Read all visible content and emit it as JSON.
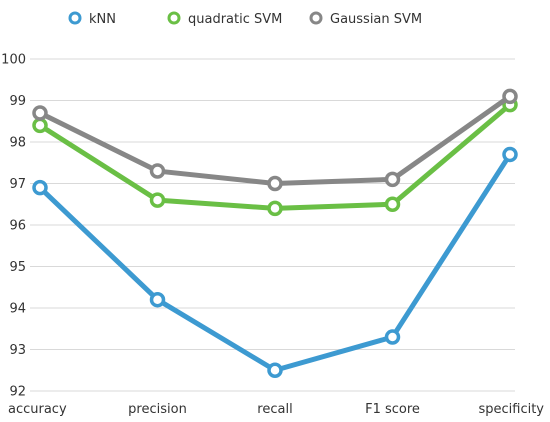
{
  "chart_data": {
    "type": "line",
    "categories": [
      "accuracy",
      "precision",
      "recall",
      "F1 score",
      "specificity"
    ],
    "ylim": [
      92,
      100
    ],
    "yticks": [
      92,
      93,
      94,
      95,
      96,
      97,
      98,
      99,
      100
    ],
    "grid": "horizontal",
    "legend_position": "top",
    "series": [
      {
        "name": "kNN",
        "color": "#3d9ad1",
        "values": [
          96.9,
          94.2,
          92.5,
          93.3,
          97.7
        ]
      },
      {
        "name": "quadratic SVM",
        "color": "#6abf45",
        "values": [
          98.4,
          96.6,
          96.4,
          96.5,
          98.9
        ]
      },
      {
        "name": "Gaussian SVM",
        "color": "#878787",
        "values": [
          98.7,
          97.3,
          97.0,
          97.1,
          99.1
        ]
      }
    ]
  }
}
